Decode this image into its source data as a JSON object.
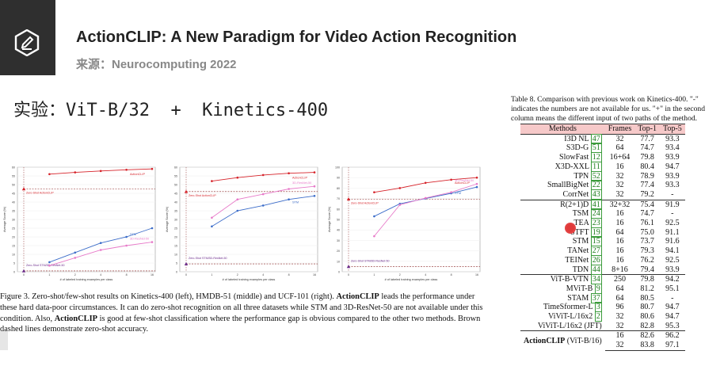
{
  "header": {
    "title": "ActionCLIP: A New Paradigm for Video Action Recognition",
    "subtitle": "来源：Neurocomputing 2022"
  },
  "headline": "实验：ViT-B/32  +  Kinetics-400",
  "colors": {
    "actionclip": "#d6232a",
    "stm": "#3b6cc9",
    "resnet": "#e77ac9",
    "zeroshot": "#8b2525",
    "logo_bg": "#2f2f2f",
    "table_header": "#f6c9c9",
    "cite": "#1a7a1a"
  },
  "chart_data": [
    {
      "type": "line",
      "ylabel": "Average Score (%)",
      "xlabel": "# of labeled training examples per class",
      "ylim": [
        0,
        60
      ],
      "yticks": [
        "0",
        "5",
        "10",
        "15",
        "20",
        "25",
        "30",
        "35",
        "40",
        "45",
        "50",
        "55",
        "60"
      ],
      "x": [
        1,
        2,
        4,
        8,
        16
      ],
      "xticks": [
        "0",
        "1",
        "2",
        "4",
        "8",
        "16"
      ],
      "series": [
        {
          "name": "ActionCLIP",
          "values": [
            56.0,
            57.0,
            57.8,
            58.5,
            59.0
          ]
        },
        {
          "name": "STM",
          "values": [
            5.5,
            11.0,
            16.5,
            20.0,
            25.0
          ]
        },
        {
          "name": "3D-ResNet-50",
          "values": [
            3.5,
            8.0,
            12.5,
            15.0,
            17.0
          ]
        }
      ],
      "zeroshot": [
        {
          "label": "Zero-Shot ActionCLIP",
          "value": 47.5
        },
        {
          "label": "Zero-Shot STM/3D-ResNet-50",
          "value": 0.5
        }
      ]
    },
    {
      "type": "line",
      "ylabel": "Average Score (%)",
      "xlabel": "# of labeled training examples per class",
      "ylim": [
        0,
        60
      ],
      "yticks": [
        "0",
        "5",
        "10",
        "15",
        "20",
        "25",
        "30",
        "35",
        "40",
        "45",
        "50",
        "55",
        "60"
      ],
      "x": [
        1,
        2,
        4,
        8,
        16
      ],
      "xticks": [
        "0",
        "1",
        "2",
        "4",
        "8",
        "16"
      ],
      "series": [
        {
          "name": "ActionCLIP",
          "values": [
            52.0,
            54.0,
            55.5,
            56.5,
            57.0
          ]
        },
        {
          "name": "STM",
          "values": [
            26.0,
            35.0,
            38.0,
            41.5,
            43.5
          ]
        },
        {
          "name": "3D-ResNet-50",
          "values": [
            31.0,
            41.5,
            44.5,
            47.5,
            49.0
          ]
        }
      ],
      "zeroshot": [
        {
          "label": "Zero-Shot ActionCLIP",
          "value": 46.0
        },
        {
          "label": "Zero-Shot STM/3D-ResNet-50",
          "value": 4.5
        }
      ]
    },
    {
      "type": "line",
      "ylabel": "Average Score (%)",
      "xlabel": "# of labeled training examples per class",
      "ylim": [
        0,
        100
      ],
      "yticks": [
        "0",
        "10",
        "20",
        "30",
        "40",
        "50",
        "60",
        "70",
        "80",
        "90",
        "100"
      ],
      "x": [
        1,
        2,
        4,
        8,
        16
      ],
      "xticks": [
        "0",
        "1",
        "2",
        "4",
        "8",
        "16"
      ],
      "series": [
        {
          "name": "ActionCLIP",
          "values": [
            76.0,
            80.0,
            85.0,
            88.0,
            90.0
          ]
        },
        {
          "name": "STM",
          "values": [
            53.0,
            65.0,
            70.0,
            75.0,
            81.0
          ]
        },
        {
          "name": "3D-ResNet-50",
          "values": [
            34.0,
            64.0,
            70.5,
            76.0,
            84.0
          ]
        }
      ],
      "zeroshot": [
        {
          "label": "Zero-Shot ActionCLIP",
          "value": 69.5
        },
        {
          "label": "Zero-Shot STM/3D-ResNet-50",
          "value": 5.0
        }
      ]
    }
  ],
  "figure_caption": {
    "prefix": "Figure 3. Zero-shot/few-shot results on Kinetics-400 (left), HMDB-51 (middle) and UCF-101 (right).",
    "bold1": "ActionCLIP",
    "part1": "leads the performance under these hard data-poor circumstances. It can do zero-shot recognition on all three datasets while STM and 3D-ResNet-50 are not available under this condition. Also,",
    "bold2": "ActionCLIP",
    "part2": "is good at few-shot classification where the performance gap is obvious compared to the other two methods. Brown dashed lines demonstrate zero-shot accuracy."
  },
  "table": {
    "caption": "Table 8. Comparison with previous work on Kinetics-400. \"-\" indicates the numbers are not available for us. \"+\" in the second column means the different input of two paths of the method.",
    "headers": [
      "Methods",
      "Frames",
      "Top-1",
      "Top-5"
    ],
    "rows": [
      {
        "name": "I3D NL",
        "cite": "47",
        "frames": "32",
        "top1": "77.7",
        "top5": "93.3"
      },
      {
        "name": "S3D-G",
        "cite": "51",
        "frames": "64",
        "top1": "74.7",
        "top5": "93.4"
      },
      {
        "name": "SlowFast",
        "cite": "12",
        "frames": "16+64",
        "top1": "79.8",
        "top5": "93.9"
      },
      {
        "name": "X3D-XXL",
        "cite": "11",
        "frames": "16",
        "top1": "80.4",
        "top5": "94.7"
      },
      {
        "name": "TPN",
        "cite": "52",
        "frames": "32",
        "top1": "78.9",
        "top5": "93.9"
      },
      {
        "name": "SmallBigNet",
        "cite": "22",
        "frames": "32",
        "top1": "77.4",
        "top5": "93.3"
      },
      {
        "name": "CorrNet",
        "cite": "43",
        "frames": "32",
        "top1": "79.2",
        "top5": "-"
      },
      {
        "name": "R(2+1)D",
        "cite": "41",
        "frames": "32+32",
        "top1": "75.4",
        "top5": "91.9"
      },
      {
        "name": "TSM",
        "cite": "24",
        "frames": "16",
        "top1": "74.7",
        "top5": "-"
      },
      {
        "name": "TEA",
        "cite": "23",
        "frames": "16",
        "top1": "76.1",
        "top5": "92.5"
      },
      {
        "name": "STFT",
        "cite": "19",
        "frames": "64",
        "top1": "75.0",
        "top5": "91.1"
      },
      {
        "name": "STM",
        "cite": "15",
        "frames": "16",
        "top1": "73.7",
        "top5": "91.6"
      },
      {
        "name": "TANet",
        "cite": "27",
        "frames": "16",
        "top1": "79.3",
        "top5": "94.1"
      },
      {
        "name": "TEINet",
        "cite": "26",
        "frames": "16",
        "top1": "76.2",
        "top5": "92.5"
      },
      {
        "name": "TDN",
        "cite": "44",
        "frames": "8+16",
        "top1": "79.4",
        "top5": "93.9"
      },
      {
        "name": "ViT-B-VTN",
        "cite": "34",
        "frames": "250",
        "top1": "79.8",
        "top5": "94.2"
      },
      {
        "name": "MViT-B",
        "cite": "9",
        "frames": "64",
        "top1": "81.2",
        "top5": "95.1"
      },
      {
        "name": "STAM",
        "cite": "37",
        "frames": "64",
        "top1": "80.5",
        "top5": "-"
      },
      {
        "name": "TimeSformer-L",
        "cite": "3",
        "frames": "96",
        "top1": "80.7",
        "top5": "94.7"
      },
      {
        "name": "ViViT-L/16x2",
        "cite": "2",
        "frames": "32",
        "top1": "80.6",
        "top5": "94.7"
      },
      {
        "name": "ViViT-L/16x2 (JFT)",
        "cite": "",
        "frames": "32",
        "top1": "82.8",
        "top5": "95.3"
      }
    ],
    "ours": {
      "name_bold": "ActionCLIP",
      "name_rest": "(ViT-B/16)",
      "rows": [
        {
          "frames": "16",
          "top1": "82.6",
          "top5": "96.2"
        },
        {
          "frames": "32",
          "top1": "83.8",
          "top5": "97.1"
        }
      ]
    }
  }
}
